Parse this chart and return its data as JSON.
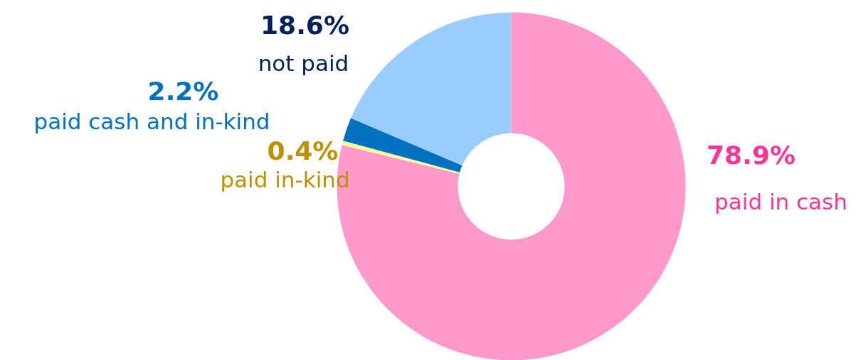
{
  "chart_data": {
    "type": "donut",
    "categories": [
      "paid in cash",
      "paid in-kind",
      "paid cash and in-kind",
      "not paid"
    ],
    "values": [
      78.9,
      0.4,
      2.2,
      18.6
    ],
    "colors": [
      "#ff99cc",
      "#ffff99",
      "#0070c0",
      "#99ccff"
    ],
    "value_labels": [
      "78.9%",
      "0.4%",
      "2.2%",
      "18.6%"
    ]
  }
}
